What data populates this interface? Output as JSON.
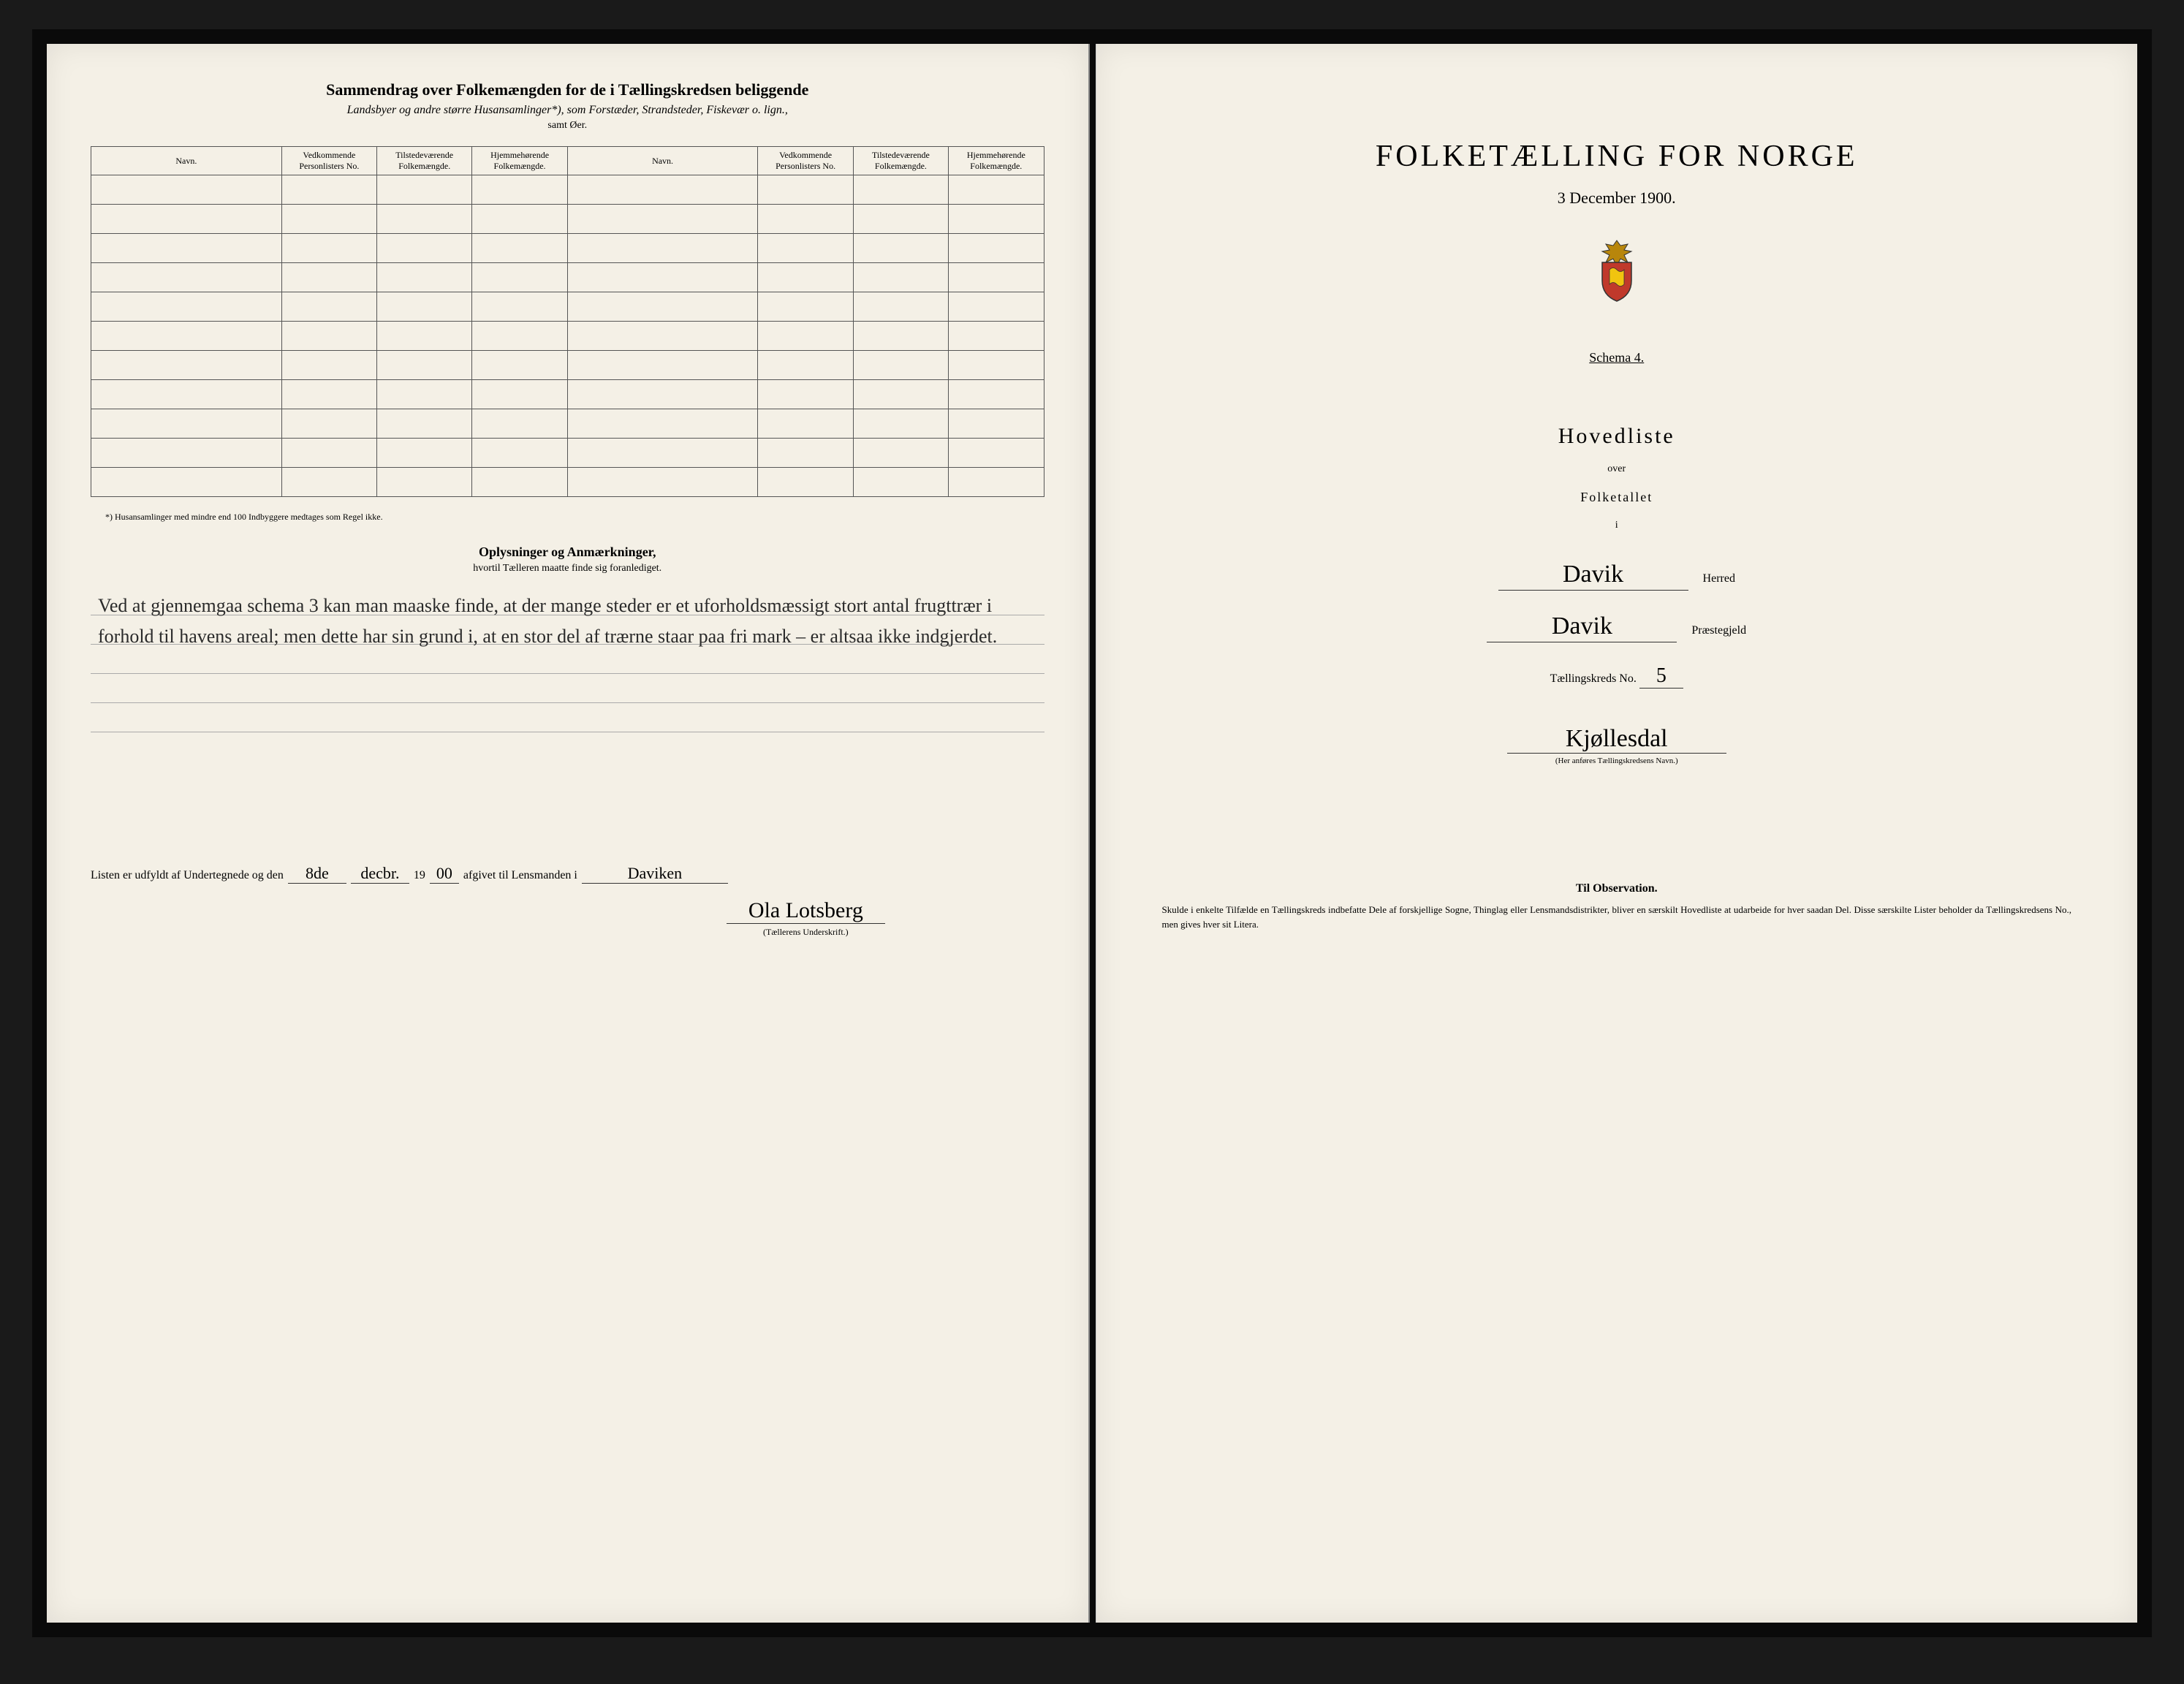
{
  "left": {
    "title": "Sammendrag over Folkemængden for de i Tællingskredsen beliggende",
    "subtitle": "Landsbyer og andre større Husansamlinger*), som Forstæder, Strandsteder, Fiskevær o. lign.,",
    "subtitle2": "samt Øer.",
    "table": {
      "headers": [
        "Navn.",
        "Vedkommende Personlisters No.",
        "Tilstedeværende Folkemængde.",
        "Hjemmehørende Folkemængde.",
        "Navn.",
        "Vedkommende Personlisters No.",
        "Tilstedeværende Folkemængde.",
        "Hjemmehørende Folkemængde."
      ],
      "rows": 11
    },
    "footnote": "*) Husansamlinger med mindre end 100 Indbyggere medtages som Regel ikke.",
    "oplysninger_title": "Oplysninger og Anmærkninger,",
    "oplysninger_sub": "hvortil Tælleren maatte finde sig foranlediget.",
    "handwritten_notes": "Ved at gjennemgaa schema 3 kan man maaske finde, at der mange steder er et uforholdsmæssigt stort antal frugttrær i forhold til havens areal; men dette har sin grund i, at en stor del af trærne staar paa fri mark – er altsaa ikke indgjerdet.",
    "listen_prefix": "Listen er udfyldt af Undertegnede og den",
    "listen_day": "8de",
    "listen_month": "decbr.",
    "listen_year_prefix": "19",
    "listen_year": "00",
    "listen_suffix": "afgivet til Lensmanden i",
    "lensmand_place": "Daviken",
    "signature": "Ola Lotsberg",
    "sig_caption": "(Tællerens Underskrift.)"
  },
  "right": {
    "main_title": "FOLKETÆLLING FOR NORGE",
    "date": "3 December 1900.",
    "schema": "Schema 4.",
    "hovedliste": "Hovedliste",
    "over": "over",
    "folketallet": "Folketallet",
    "i": "i",
    "herred_value": "Davik",
    "herred_label": "Herred",
    "praestegjeld_value": "Davik",
    "praestegjeld_label": "Præstegjeld",
    "kreds_label": "Tællingskreds No.",
    "kreds_no": "5",
    "kreds_name": "Kjøllesdal",
    "kreds_caption": "(Her anføres Tællingskredsens Navn.)",
    "obs_title": "Til Observation.",
    "obs_text": "Skulde i enkelte Tilfælde en Tællingskreds indbefatte Dele af forskjellige Sogne, Thinglag eller Lensmandsdistrikter, bliver en særskilt Hovedliste at udarbeide for hver saadan Del. Disse særskilte Lister beholder da Tællingskredsens No., men gives hver sit Litera."
  },
  "colors": {
    "paper": "#f4f0e6",
    "ink": "#2a2a2a",
    "border": "#555555",
    "background": "#1a1a1a"
  }
}
